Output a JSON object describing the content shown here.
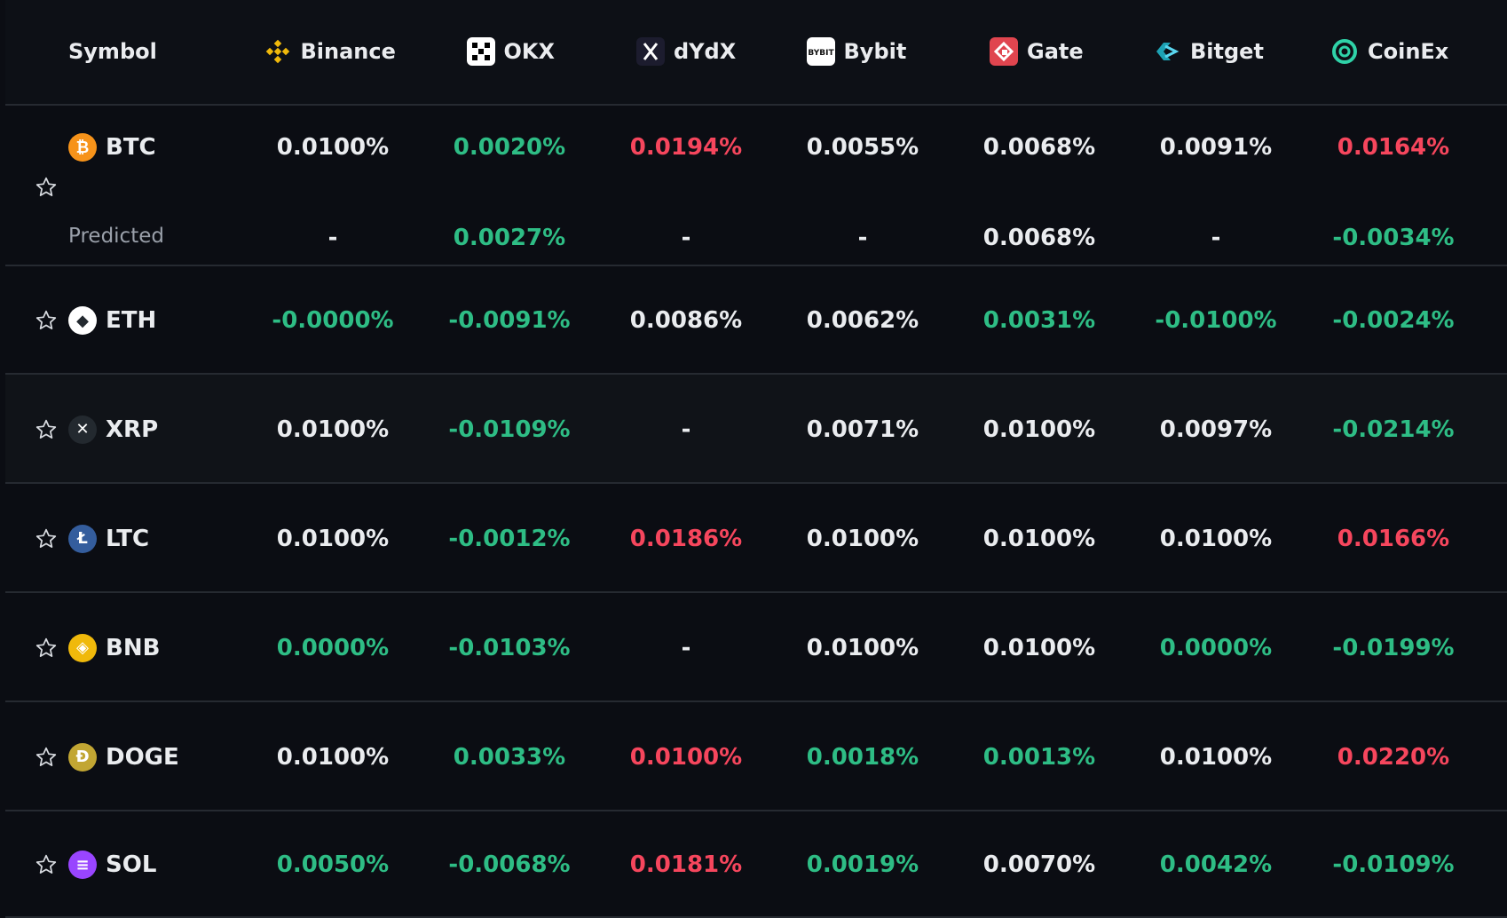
{
  "header": {
    "symbol_label": "Symbol",
    "exchanges": [
      {
        "name": "Binance",
        "icon": "binance-icon",
        "color": "#f0b90b"
      },
      {
        "name": "OKX",
        "icon": "okx-icon",
        "color": "#ffffff"
      },
      {
        "name": "dYdX",
        "icon": "dydx-icon",
        "color": "#6966ff"
      },
      {
        "name": "Bybit",
        "icon": "bybit-icon",
        "color": "#ffffff"
      },
      {
        "name": "Gate",
        "icon": "gate-icon",
        "color": "#e0454f"
      },
      {
        "name": "Bitget",
        "icon": "bitget-icon",
        "color": "#1da2b4"
      },
      {
        "name": "CoinEx",
        "icon": "coinex-icon",
        "color": "#2fd2a8"
      }
    ]
  },
  "colors": {
    "positive_neutral": "#eaecef",
    "green": "#2ebd85",
    "red": "#f6465d"
  },
  "rows": [
    {
      "symbol": "BTC",
      "icon": "btc-icon",
      "icon_color": "#f7931a",
      "glyph": "₿",
      "rates": [
        {
          "value": "0.0100%",
          "tone": "neutral"
        },
        {
          "value": "0.0020%",
          "tone": "green"
        },
        {
          "value": "0.0194%",
          "tone": "red"
        },
        {
          "value": "0.0055%",
          "tone": "neutral"
        },
        {
          "value": "0.0068%",
          "tone": "neutral"
        },
        {
          "value": "0.0091%",
          "tone": "neutral"
        },
        {
          "value": "0.0164%",
          "tone": "red"
        }
      ],
      "predicted_label": "Predicted",
      "predicted": [
        {
          "value": "-",
          "tone": "neutral"
        },
        {
          "value": "0.0027%",
          "tone": "green"
        },
        {
          "value": "-",
          "tone": "neutral"
        },
        {
          "value": "-",
          "tone": "neutral"
        },
        {
          "value": "0.0068%",
          "tone": "neutral"
        },
        {
          "value": "-",
          "tone": "neutral"
        },
        {
          "value": "-0.0034%",
          "tone": "green"
        }
      ]
    },
    {
      "symbol": "ETH",
      "icon": "eth-icon",
      "icon_color": "#ffffff",
      "glyph": "◆",
      "rates": [
        {
          "value": "-0.0000%",
          "tone": "green"
        },
        {
          "value": "-0.0091%",
          "tone": "green"
        },
        {
          "value": "0.0086%",
          "tone": "neutral"
        },
        {
          "value": "0.0062%",
          "tone": "neutral"
        },
        {
          "value": "0.0031%",
          "tone": "green"
        },
        {
          "value": "-0.0100%",
          "tone": "green"
        },
        {
          "value": "-0.0024%",
          "tone": "green"
        }
      ]
    },
    {
      "symbol": "XRP",
      "icon": "xrp-icon",
      "icon_color": "#23292f",
      "glyph": "✕",
      "rates": [
        {
          "value": "0.0100%",
          "tone": "neutral"
        },
        {
          "value": "-0.0109%",
          "tone": "green"
        },
        {
          "value": "-",
          "tone": "neutral"
        },
        {
          "value": "0.0071%",
          "tone": "neutral"
        },
        {
          "value": "0.0100%",
          "tone": "neutral"
        },
        {
          "value": "0.0097%",
          "tone": "neutral"
        },
        {
          "value": "-0.0214%",
          "tone": "green"
        }
      ]
    },
    {
      "symbol": "LTC",
      "icon": "ltc-icon",
      "icon_color": "#345d9d",
      "glyph": "Ł",
      "rates": [
        {
          "value": "0.0100%",
          "tone": "neutral"
        },
        {
          "value": "-0.0012%",
          "tone": "green"
        },
        {
          "value": "0.0186%",
          "tone": "red"
        },
        {
          "value": "0.0100%",
          "tone": "neutral"
        },
        {
          "value": "0.0100%",
          "tone": "neutral"
        },
        {
          "value": "0.0100%",
          "tone": "neutral"
        },
        {
          "value": "0.0166%",
          "tone": "red"
        }
      ]
    },
    {
      "symbol": "BNB",
      "icon": "bnb-icon",
      "icon_color": "#f0b90b",
      "glyph": "◈",
      "rates": [
        {
          "value": "0.0000%",
          "tone": "green"
        },
        {
          "value": "-0.0103%",
          "tone": "green"
        },
        {
          "value": "-",
          "tone": "neutral"
        },
        {
          "value": "0.0100%",
          "tone": "neutral"
        },
        {
          "value": "0.0100%",
          "tone": "neutral"
        },
        {
          "value": "0.0000%",
          "tone": "green"
        },
        {
          "value": "-0.0199%",
          "tone": "green"
        }
      ]
    },
    {
      "symbol": "DOGE",
      "icon": "doge-icon",
      "icon_color": "#c2a633",
      "glyph": "Ð",
      "rates": [
        {
          "value": "0.0100%",
          "tone": "neutral"
        },
        {
          "value": "0.0033%",
          "tone": "green"
        },
        {
          "value": "0.0100%",
          "tone": "red"
        },
        {
          "value": "0.0018%",
          "tone": "green"
        },
        {
          "value": "0.0013%",
          "tone": "green"
        },
        {
          "value": "0.0100%",
          "tone": "neutral"
        },
        {
          "value": "0.0220%",
          "tone": "red"
        }
      ]
    },
    {
      "symbol": "SOL",
      "icon": "sol-icon",
      "icon_color": "#9945ff",
      "glyph": "≡",
      "rates": [
        {
          "value": "0.0050%",
          "tone": "green"
        },
        {
          "value": "-0.0068%",
          "tone": "green"
        },
        {
          "value": "0.0181%",
          "tone": "red"
        },
        {
          "value": "0.0019%",
          "tone": "green"
        },
        {
          "value": "0.0070%",
          "tone": "neutral"
        },
        {
          "value": "0.0042%",
          "tone": "green"
        },
        {
          "value": "-0.0109%",
          "tone": "green"
        }
      ]
    }
  ]
}
